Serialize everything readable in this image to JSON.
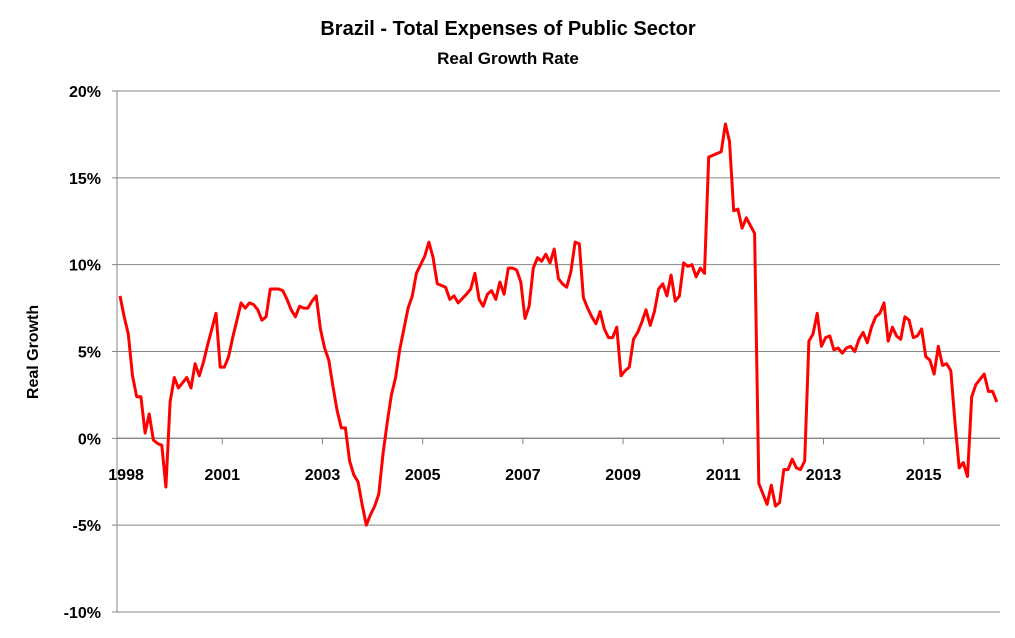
{
  "chart_data": {
    "type": "line",
    "title": "Brazil - Total Expenses of Public Sector",
    "subtitle": "Real Growth Rate",
    "xlabel": "",
    "ylabel": "Real Growth",
    "ylim": [
      -10,
      20
    ],
    "y_ticks": [
      "-10%",
      "-5%",
      "0%",
      "5%",
      "10%",
      "15%",
      "20%"
    ],
    "y_tick_values": [
      -10,
      -5,
      0,
      5,
      10,
      15,
      20
    ],
    "x_axis_kind": "category (monthly observations), label every 24 categories",
    "x_tick_labels": [
      "1998",
      "2001",
      "2003",
      "2005",
      "2007",
      "2009",
      "2011",
      "2013",
      "2015"
    ],
    "grid": "horizontal",
    "line_color": "#ff0000",
    "grid_color": "#868686",
    "series": [
      {
        "x": [
          0,
          1,
          2,
          3,
          4,
          5,
          6,
          7,
          8,
          9,
          10,
          11,
          12,
          13,
          14,
          16,
          17,
          18,
          19,
          20,
          21,
          23,
          24,
          25,
          26,
          27,
          29,
          30,
          31,
          32,
          33,
          34,
          35,
          36,
          38,
          39,
          40,
          41,
          42,
          43,
          44,
          45,
          46,
          47,
          48,
          49,
          50,
          51,
          52,
          53,
          54,
          55,
          56,
          57,
          58,
          59,
          60,
          61,
          62,
          63,
          64,
          65,
          66,
          67,
          68,
          69,
          70,
          71,
          72,
          73,
          74,
          75,
          76,
          77,
          78,
          79,
          80,
          81,
          83,
          84,
          85,
          86,
          87,
          88,
          89,
          90,
          91,
          92,
          93,
          94,
          95,
          96,
          97,
          98,
          99,
          100,
          101,
          102,
          103,
          104,
          105,
          106,
          107,
          108,
          109,
          110,
          111,
          112,
          113,
          114,
          115,
          116,
          117,
          118,
          119,
          120,
          121,
          122,
          123,
          124,
          125,
          126,
          127,
          128,
          129,
          130,
          131,
          132,
          133,
          134,
          135,
          136,
          137,
          138,
          139,
          140,
          141,
          142,
          144,
          145,
          146,
          147,
          148,
          149,
          150,
          152,
          153,
          155,
          156,
          157,
          158,
          159,
          160,
          161,
          162,
          163,
          164,
          165,
          166,
          167,
          168,
          169,
          170,
          171,
          172,
          173,
          174,
          175,
          176,
          177,
          178,
          179,
          180,
          181,
          182,
          183,
          184,
          185,
          186,
          187,
          188,
          189,
          190,
          191,
          192,
          193,
          194,
          195,
          196,
          197,
          198,
          199,
          200,
          201,
          202,
          203,
          204,
          205,
          207,
          208,
          209,
          210
        ],
        "values": [
          8.2,
          7.0,
          6.0,
          3.6,
          2.4,
          2.4,
          0.3,
          1.4,
          -0.1,
          -0.3,
          -0.4,
          -2.8,
          2.1,
          3.5,
          2.9,
          3.5,
          2.9,
          4.3,
          3.6,
          4.4,
          5.4,
          7.2,
          4.1,
          4.1,
          4.7,
          5.8,
          7.8,
          7.5,
          7.8,
          7.7,
          7.4,
          6.8,
          7.0,
          8.6,
          8.6,
          8.5,
          8.0,
          7.4,
          7.0,
          7.6,
          7.5,
          7.5,
          7.9,
          8.2,
          6.3,
          5.2,
          4.5,
          3.0,
          1.6,
          0.6,
          0.6,
          -1.3,
          -2.1,
          -2.5,
          -3.8,
          -5.0,
          -4.4,
          -3.9,
          -3.2,
          -0.9,
          0.9,
          2.5,
          3.5,
          5.1,
          6.3,
          7.5,
          8.2,
          9.5,
          10.0,
          10.5,
          11.3,
          10.4,
          8.9,
          8.8,
          8.7,
          8.0,
          8.2,
          7.8,
          8.3,
          8.6,
          9.5,
          8.0,
          7.6,
          8.3,
          8.5,
          8.0,
          9.0,
          8.3,
          9.8,
          9.8,
          9.7,
          9.0,
          6.9,
          7.6,
          9.8,
          10.4,
          10.2,
          10.6,
          10.1,
          10.9,
          9.2,
          8.9,
          8.7,
          9.6,
          11.3,
          11.2,
          8.1,
          7.5,
          7.0,
          6.6,
          7.3,
          6.3,
          5.8,
          5.8,
          6.4,
          3.6,
          3.9,
          4.1,
          5.7,
          6.1,
          6.7,
          7.4,
          6.5,
          7.3,
          8.6,
          8.9,
          8.2,
          9.4,
          7.9,
          8.2,
          10.1,
          9.9,
          10.0,
          9.3,
          9.8,
          9.5,
          16.2,
          16.3,
          16.5,
          18.1,
          17.1,
          13.1,
          13.2,
          12.1,
          12.7,
          11.8,
          -2.6,
          -3.8,
          -2.7,
          -3.9,
          -3.7,
          -1.8,
          -1.8,
          -1.2,
          -1.7,
          -1.8,
          -1.3,
          5.6,
          6.0,
          7.2,
          5.3,
          5.8,
          5.9,
          5.1,
          5.2,
          4.9,
          5.2,
          5.3,
          5.0,
          5.7,
          6.1,
          5.5,
          6.4,
          7.0,
          7.2,
          7.8,
          5.6,
          6.4,
          5.9,
          5.7,
          7.0,
          6.8,
          5.8,
          5.9,
          6.3,
          4.7,
          4.5,
          3.7,
          5.3,
          4.2,
          4.3,
          3.9,
          0.9,
          -1.7,
          -1.4,
          -2.2,
          2.4,
          3.1,
          3.7,
          2.7,
          2.7,
          2.1
        ]
      }
    ]
  }
}
